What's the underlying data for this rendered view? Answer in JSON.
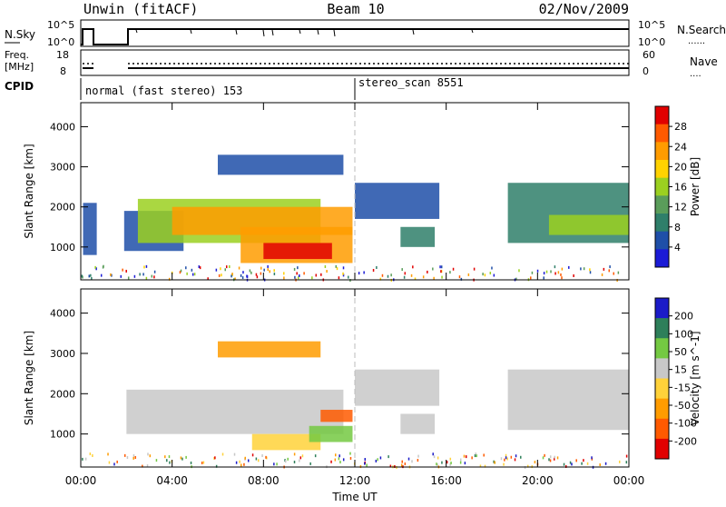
{
  "header": {
    "site": "Unwin (fitACF)",
    "beam": "Beam 10",
    "date": "02/Nov/2009"
  },
  "status_panels": {
    "nsky_label": "N.Sky",
    "nsky_ticks": [
      "10^5",
      "10^0"
    ],
    "nsearch_label": "N.Search",
    "nsearch_ticks": [
      "10^5",
      "10^0"
    ],
    "freq_label_1": "Freq.",
    "freq_label_2": "[MHz]",
    "freq_ticks": [
      "18",
      "8"
    ],
    "nave_label": "Nave",
    "nave_ticks": [
      "60",
      "0"
    ],
    "cpid_label": "CPID",
    "cpid_segments": [
      "normal (fast stereo) 153",
      "stereo_scan 8551"
    ]
  },
  "chart_data": [
    {
      "type": "heatmap",
      "title": "",
      "ylabel": "Slant Range [km]",
      "xlabel": "",
      "x_ticks": [
        "00:00",
        "04:00",
        "08:00",
        "12:00",
        "16:00",
        "20:00",
        "00:00"
      ],
      "y_ticks": [
        "1000",
        "2000",
        "3000",
        "4000"
      ],
      "ylim": [
        180,
        4600
      ],
      "xlim_hours": [
        0,
        24
      ],
      "colorbar": {
        "label": "Power [dB]",
        "ticks": [
          "4",
          "8",
          "12",
          "16",
          "20",
          "24",
          "28"
        ],
        "colors": [
          "#1b1bd6",
          "#1f4fa8",
          "#2f7f6a",
          "#5a9d5a",
          "#9bd020",
          "#ffd200",
          "#ff9c00",
          "#ff5a00",
          "#e10000"
        ]
      },
      "regions": [
        {
          "hours": [
            0.1,
            0.7
          ],
          "range": [
            800,
            2100
          ],
          "level": 1
        },
        {
          "hours": [
            1.9,
            4.5
          ],
          "range": [
            900,
            1900
          ],
          "level": 1
        },
        {
          "hours": [
            2.5,
            10.5
          ],
          "range": [
            1100,
            2200
          ],
          "level": 4
        },
        {
          "hours": [
            4.0,
            11.9
          ],
          "range": [
            1300,
            2000
          ],
          "level": 6
        },
        {
          "hours": [
            6.0,
            11.5
          ],
          "range": [
            2800,
            3300
          ],
          "level": 1
        },
        {
          "hours": [
            7.0,
            11.9
          ],
          "range": [
            600,
            1500
          ],
          "level": 6
        },
        {
          "hours": [
            8.0,
            11.0
          ],
          "range": [
            700,
            1100
          ],
          "level": 8
        },
        {
          "hours": [
            12.0,
            15.7
          ],
          "range": [
            1700,
            2600
          ],
          "level": 1
        },
        {
          "hours": [
            14.0,
            15.5
          ],
          "range": [
            1000,
            1500
          ],
          "level": 2
        },
        {
          "hours": [
            18.7,
            24.0
          ],
          "range": [
            1100,
            2600
          ],
          "level": 2
        },
        {
          "hours": [
            20.5,
            24.0
          ],
          "range": [
            1300,
            1800
          ],
          "level": 4
        }
      ]
    },
    {
      "type": "heatmap",
      "title": "",
      "ylabel": "Slant Range [km]",
      "xlabel": "Time UT",
      "x_ticks": [
        "00:00",
        "04:00",
        "08:00",
        "12:00",
        "16:00",
        "20:00",
        "00:00"
      ],
      "y_ticks": [
        "1000",
        "2000",
        "3000",
        "4000"
      ],
      "ylim": [
        180,
        4600
      ],
      "xlim_hours": [
        0,
        24
      ],
      "colorbar": {
        "label": "Velocity [m s^-1]",
        "ticks": [
          "200",
          "100",
          "50",
          "15",
          "-15",
          "-50",
          "-100",
          "-200"
        ],
        "colors": [
          "#1b1bc8",
          "#2e7f5a",
          "#74c942",
          "#c8c8c8",
          "#ffd23a",
          "#ff9c00",
          "#ff5a00",
          "#e10000"
        ]
      },
      "regions": [
        {
          "hours": [
            2.0,
            11.5
          ],
          "range": [
            1000,
            2100
          ],
          "level": 3
        },
        {
          "hours": [
            6.0,
            10.5
          ],
          "range": [
            2900,
            3300
          ],
          "level": 5
        },
        {
          "hours": [
            7.5,
            10.5
          ],
          "range": [
            600,
            1000
          ],
          "level": 4
        },
        {
          "hours": [
            10.5,
            11.9
          ],
          "range": [
            1300,
            1600
          ],
          "level": 6
        },
        {
          "hours": [
            10.0,
            11.9
          ],
          "range": [
            800,
            1200
          ],
          "level": 2
        },
        {
          "hours": [
            12.0,
            15.7
          ],
          "range": [
            1700,
            2600
          ],
          "level": 3
        },
        {
          "hours": [
            14.0,
            15.5
          ],
          "range": [
            1000,
            1500
          ],
          "level": 3
        },
        {
          "hours": [
            18.7,
            24.0
          ],
          "range": [
            1100,
            2600
          ],
          "level": 3
        }
      ]
    }
  ]
}
